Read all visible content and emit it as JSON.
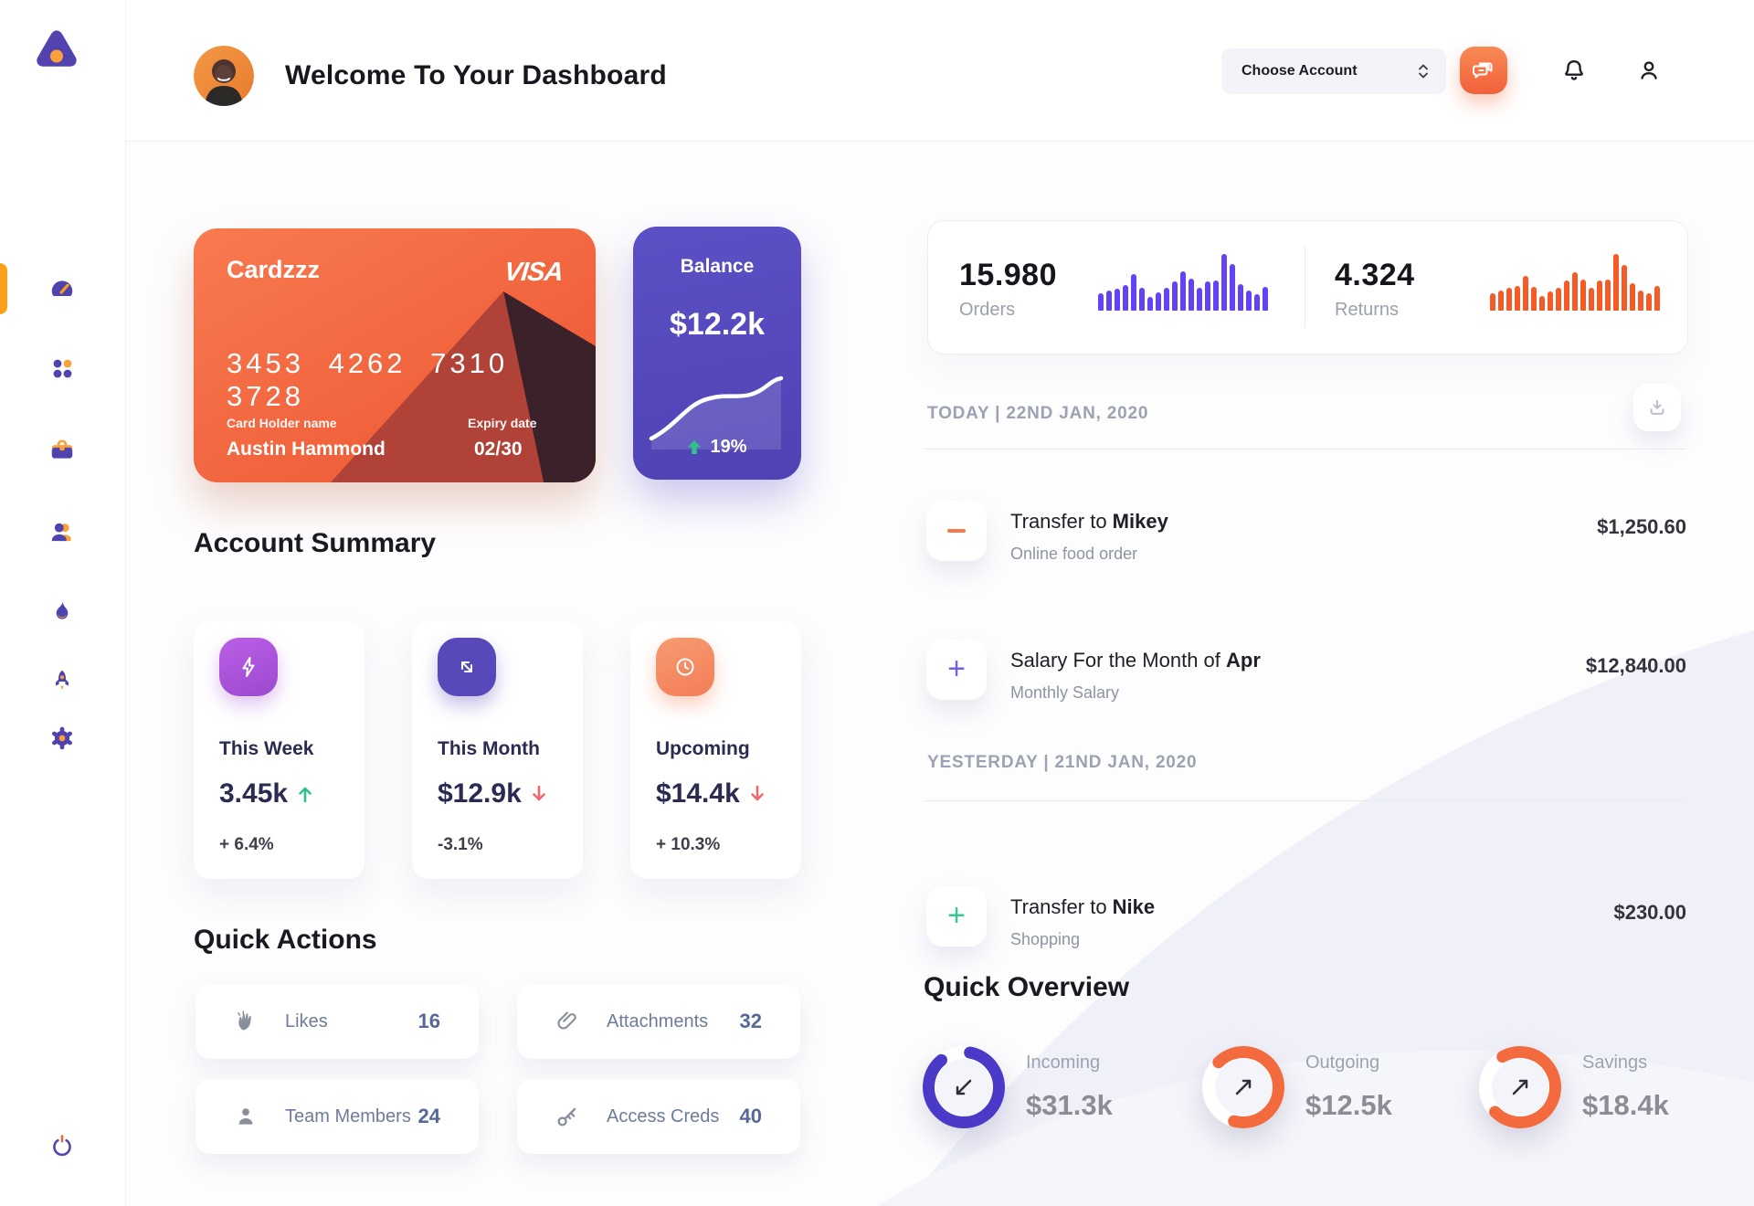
{
  "header": {
    "title": "Welcome To Your Dashboard",
    "account_selector": "Choose Account"
  },
  "sidebar": {
    "items": [
      {
        "icon": "speedometer-icon",
        "name": "dashboard",
        "active": true
      },
      {
        "icon": "grid-dots-icon",
        "name": "apps",
        "active": false
      },
      {
        "icon": "briefcase-icon",
        "name": "work",
        "active": false
      },
      {
        "icon": "users-icon",
        "name": "team",
        "active": false
      },
      {
        "icon": "flame-icon",
        "name": "trending",
        "active": false
      },
      {
        "icon": "rocket-icon",
        "name": "launch",
        "active": false
      },
      {
        "icon": "gear-icon",
        "name": "settings",
        "active": false
      }
    ],
    "power": {
      "icon": "power-icon"
    }
  },
  "credit_card": {
    "name": "Cardzzz",
    "brand": "VISA",
    "number": "3453 4262 7310 3728",
    "holder_label": "Card Holder name",
    "holder": "Austin Hammond",
    "expiry_label": "Expiry date",
    "expiry": "02/30"
  },
  "balance_card": {
    "label": "Balance",
    "value": "$12.2k",
    "change": "19%",
    "trend_color": "#2ec28a"
  },
  "account_summary": {
    "title": "Account Summary",
    "cards": [
      {
        "icon": "bolt-icon",
        "icon_color": "#a855d8",
        "label": "This Week",
        "value": "3.45k",
        "trend": "up",
        "trend_color": "#2ec28a",
        "percent": "+ 6.4%"
      },
      {
        "icon": "diagonal-arrows-icon",
        "icon_color": "#5849bb",
        "label": "This Month",
        "value": "$12.9k",
        "trend": "down",
        "trend_color": "#ee6a6a",
        "percent": "-3.1%"
      },
      {
        "icon": "clock-icon",
        "icon_color": "#f58a64",
        "label": "Upcoming",
        "value": "$14.4k",
        "trend": "down",
        "trend_color": "#ee6a6a",
        "percent": "+ 10.3%"
      }
    ]
  },
  "quick_actions": {
    "title": "Quick Actions",
    "items": [
      {
        "icon": "wave-hand-icon",
        "label": "Likes",
        "count": "16"
      },
      {
        "icon": "paperclip-icon",
        "label": "Attachments",
        "count": "32"
      },
      {
        "icon": "person-icon",
        "label": "Team Members",
        "count": "24"
      },
      {
        "icon": "key-icon",
        "label": "Access Creds",
        "count": "40"
      }
    ]
  },
  "stats": {
    "orders": {
      "value": "15.980",
      "label": "Orders"
    },
    "returns": {
      "value": "4.324",
      "label": "Returns"
    }
  },
  "chart_data": [
    {
      "type": "bar",
      "title": "Orders mini bar chart",
      "color": "#6442f5",
      "values": [
        31,
        35,
        38,
        45,
        65,
        40,
        24,
        33,
        40,
        52,
        70,
        57,
        40,
        52,
        54,
        100,
        82,
        47,
        35,
        29,
        42
      ],
      "ylim": [
        0,
        100
      ],
      "grid": false
    },
    {
      "type": "bar",
      "title": "Returns mini bar chart",
      "color": "#f45b26",
      "values": [
        30,
        36,
        40,
        44,
        62,
        42,
        25,
        34,
        41,
        53,
        68,
        55,
        41,
        53,
        55,
        100,
        80,
        48,
        36,
        30,
        43
      ],
      "ylim": [
        0,
        100
      ],
      "grid": false
    },
    {
      "type": "line",
      "title": "Balance sparkline",
      "color": "#ffffff",
      "x": [
        0,
        1,
        2,
        3,
        4,
        5,
        6,
        7,
        8,
        9
      ],
      "values": [
        12,
        18,
        35,
        48,
        53,
        54,
        53,
        57,
        74,
        78
      ],
      "ylim": [
        0,
        100
      ],
      "grid": false
    }
  ],
  "transactions": {
    "groups": [
      {
        "date_label": "TODAY | 22ND JAN, 2020"
      },
      {
        "date_label": "YESTERDAY | 21ND JAN, 2020"
      }
    ],
    "rows": [
      {
        "icon": "minus-icon",
        "icon_color": "#f4794f",
        "title_prefix": "Transfer to ",
        "title_bold": "Mikey",
        "subtitle": "Online food order",
        "amount": "$1,250.60"
      },
      {
        "icon": "plus-icon",
        "icon_color": "#7161e8",
        "title_prefix": "Salary For the Month of ",
        "title_bold": "Apr",
        "subtitle": "Monthly Salary",
        "amount": "$12,840.00"
      },
      {
        "icon": "plus-icon",
        "icon_color": "#35c695",
        "title_prefix": "Transfer to ",
        "title_bold": "Nike",
        "subtitle": "Shopping",
        "amount": "$230.00"
      }
    ]
  },
  "quick_overview": {
    "title": "Quick Overview",
    "items": [
      {
        "label": "Incoming",
        "value": "$31.3k",
        "ring_color": "#4b39c8",
        "arc_deg": 310,
        "start_deg": 280,
        "arrow": "down-left",
        "percent_approx": 86
      },
      {
        "label": "Outgoing",
        "value": "$12.5k",
        "ring_color": "#f26a3e",
        "arc_deg": 240,
        "start_deg": 225,
        "arrow": "up-right",
        "percent_approx": 67
      },
      {
        "label": "Savings",
        "value": "$18.4k",
        "ring_color": "#f26a3e",
        "arc_deg": 255,
        "start_deg": 240,
        "arrow": "up-right",
        "percent_approx": 71
      }
    ]
  },
  "colors": {
    "accent_orange": "#f2613a",
    "accent_purple": "#5243ae",
    "nav_active_bar": "#fba01b",
    "text_dark": "#17171f",
    "text_gray": "#9aa0ac"
  }
}
